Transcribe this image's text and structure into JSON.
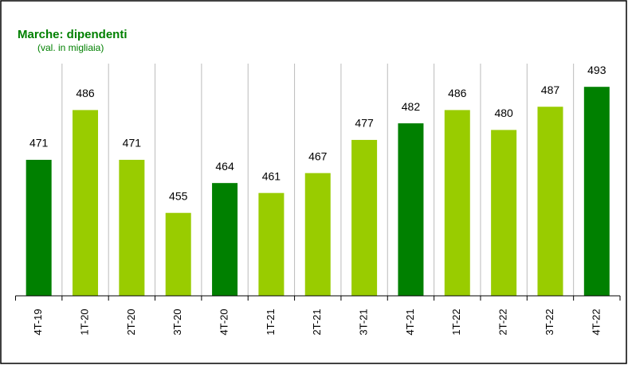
{
  "chart_data": {
    "type": "bar",
    "title": "Marche: dipendenti",
    "subtitle": "(val. in migliaia)",
    "categories": [
      "4T-19",
      "1T-20",
      "2T-20",
      "3T-20",
      "4T-20",
      "1T-21",
      "2T-21",
      "3T-21",
      "4T-21",
      "1T-22",
      "2T-22",
      "3T-22",
      "4T-22"
    ],
    "values": [
      471,
      486,
      471,
      455,
      464,
      461,
      467,
      477,
      482,
      486,
      480,
      487,
      493
    ],
    "colors": [
      "#008000",
      "#99cc00",
      "#99cc00",
      "#99cc00",
      "#008000",
      "#99cc00",
      "#99cc00",
      "#99cc00",
      "#008000",
      "#99cc00",
      "#99cc00",
      "#99cc00",
      "#008000"
    ],
    "ylim": [
      430,
      500
    ]
  }
}
